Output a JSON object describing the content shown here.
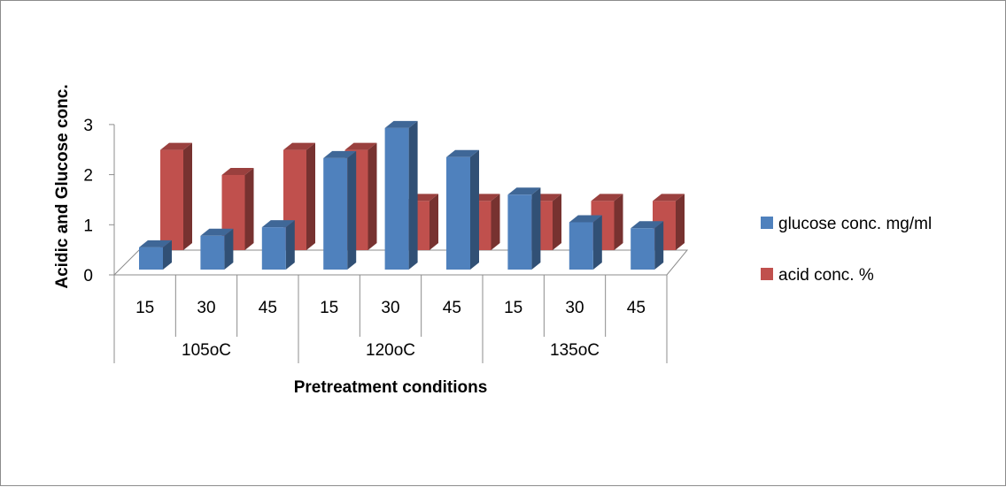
{
  "chart_data": {
    "type": "bar",
    "style": "3d-clustered-column",
    "ylabel": "Acidic and Glucose conc.",
    "xlabel": "Pretreatment  conditions",
    "ylim": [
      0,
      3
    ],
    "yticks": [
      "0",
      "1",
      "2",
      "3"
    ],
    "groups": [
      {
        "label": "105oC",
        "categories": [
          "15",
          "30",
          "45"
        ]
      },
      {
        "label": "120oC",
        "categories": [
          "15",
          "30",
          "45"
        ]
      },
      {
        "label": "135oC",
        "categories": [
          "15",
          "30",
          "45"
        ]
      }
    ],
    "categories": [
      "15",
      "30",
      "45",
      "15",
      "30",
      "45",
      "15",
      "30",
      "45"
    ],
    "series": [
      {
        "name": "glucose conc. mg/ml",
        "color": "#4f81bd",
        "values": [
          0.55,
          0.78,
          0.95,
          2.33,
          2.93,
          2.35,
          1.6,
          1.05,
          0.93
        ]
      },
      {
        "name": "acid conc. %",
        "color": "#c0504d",
        "values": [
          2.0,
          1.5,
          2.0,
          2.0,
          0.98,
          0.98,
          0.98,
          0.98,
          0.98
        ]
      }
    ],
    "legend_position": "right",
    "grid": false
  }
}
